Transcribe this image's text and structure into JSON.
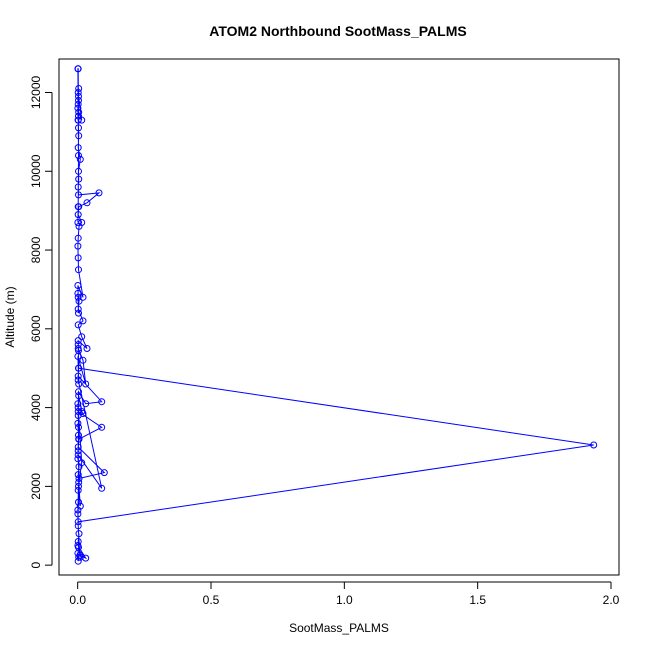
{
  "chart_data": {
    "type": "line",
    "title": "ATOM2 Northbound SootMass_PALMS",
    "xlabel": "SootMass_PALMS",
    "ylabel": "Altitude (m)",
    "xlim": [
      -0.07,
      2.03
    ],
    "ylim": [
      -250,
      12850
    ],
    "xticks": [
      0,
      0.5,
      1,
      1.5,
      2
    ],
    "xtick_labels": [
      "0.0",
      "0.5",
      "1.0",
      "1.5",
      "2.0"
    ],
    "yticks": [
      0,
      2000,
      4000,
      6000,
      8000,
      10000,
      12000
    ],
    "ytick_labels": [
      "0",
      "2000",
      "4000",
      "6000",
      "8000",
      "10000",
      "12000"
    ],
    "grid": false,
    "legend": "none",
    "marker": "open-circle",
    "series_color": "#0000ff",
    "series": [
      {
        "x": [
          0.002,
          0.004,
          0.001,
          0.003,
          0.01,
          0.002,
          0.005,
          0.001,
          0.03,
          0.008,
          0.002,
          0.001,
          0.003,
          0.002,
          0.01,
          0.004,
          0.002,
          0.005,
          0.001,
          0.002,
          0.004,
          0.003,
          0.002,
          0.001,
          0.015,
          0.003,
          0.001,
          0.002,
          1.935,
          0.003,
          0.002,
          0.09,
          0.002,
          0.005,
          0.1,
          0.002,
          0.003,
          0.001,
          0.005,
          0.09,
          0.002,
          0.004,
          0.015,
          0.02,
          0.002,
          0.003,
          0.03,
          0.09,
          0.002,
          0.004,
          0.001,
          0.03,
          0.02,
          0.002,
          0.004,
          0.002,
          0.003,
          0.002,
          0.035,
          0.015,
          0.002,
          0.02,
          0.002,
          0.005,
          0.001,
          0.003,
          0.002,
          0.001,
          0.02,
          0.003,
          0.002,
          0.001,
          0.002,
          0.005,
          0.015,
          0.002,
          0.004,
          0.035,
          0.08,
          0.003,
          0.002,
          0.004,
          0.003,
          0.01,
          0.002,
          0.004,
          0.003,
          0.002,
          0.001,
          0.003,
          0.002,
          0.004,
          0.015,
          0.003,
          0.002,
          0.004,
          0.002,
          0.003,
          0.002,
          0.001,
          0.003,
          0.002,
          0.001
        ],
        "y": [
          100,
          200,
          300,
          450,
          200,
          600,
          800,
          500,
          180,
          250,
          1000,
          1300,
          1600,
          1900,
          1500,
          2100,
          2300,
          2500,
          2700,
          2900,
          3200,
          3500,
          3800,
          4100,
          2600,
          2000,
          1400,
          1100,
          3050,
          5000,
          4700,
          1950,
          2800,
          2200,
          2350,
          3000,
          3300,
          3600,
          3200,
          3500,
          3900,
          4300,
          3900,
          3850,
          4000,
          4400,
          4100,
          4150,
          4800,
          4600,
          5300,
          4600,
          5200,
          5500,
          5000,
          5600,
          5450,
          5700,
          5500,
          5800,
          6100,
          6200,
          6500,
          6700,
          6900,
          6400,
          6800,
          7100,
          6800,
          7500,
          7800,
          8100,
          8300,
          8600,
          8700,
          8900,
          9100,
          9200,
          9450,
          9400,
          9600,
          9800,
          10000,
          10300,
          10600,
          10900,
          11100,
          11300,
          11600,
          11800,
          11300,
          11500,
          11300,
          11900,
          12000,
          12100,
          11700,
          11400,
          12600,
          12600,
          10400,
          9100,
          8700
        ]
      }
    ]
  }
}
